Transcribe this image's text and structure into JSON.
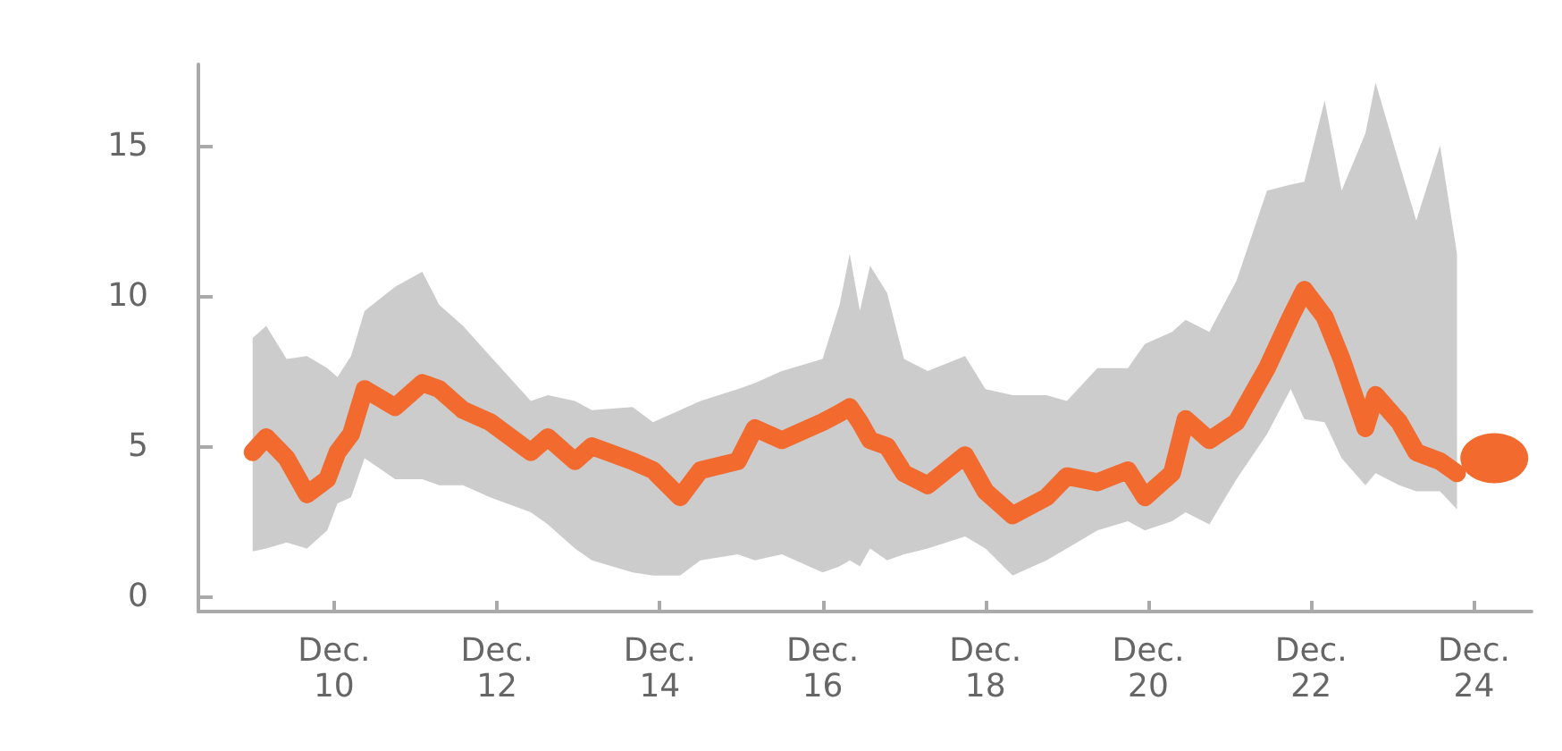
{
  "chart_data": {
    "type": "line",
    "x": [
      "--12-09T00:00",
      "--12-09T04:00",
      "--12-09T10:00",
      "--12-09T16:00",
      "--12-09T22:00",
      "--12-10T01:00",
      "--12-10T05:00",
      "--12-10T09:00",
      "--12-10T18:00",
      "--12-11T02:00",
      "--12-11T07:00",
      "--12-11T14:00",
      "--12-11T22:00",
      "--12-12T10:00",
      "--12-12T15:00",
      "--12-12T23:00",
      "--12-13T04:00",
      "--12-13T16:00",
      "--12-13T22:00",
      "--12-14T06:00",
      "--12-14T12:00",
      "--12-14T23:00",
      "--12-15T04:00",
      "--12-15T12:00",
      "--12-16T00:00",
      "--12-16T05:00",
      "--12-16T08:00",
      "--12-16T11:00",
      "--12-16T14:00",
      "--12-16T19:00",
      "--12-17T00:00",
      "--12-17T07:00",
      "--12-17T18:00",
      "--12-18T00:00",
      "--12-18T08:00",
      "--12-18T18:00",
      "--12-19T00:00",
      "--12-19T09:00",
      "--12-19T18:00",
      "--12-19T23:00",
      "--12-20T07:00",
      "--12-20T11:00",
      "--12-20T18:00",
      "--12-21T02:00",
      "--12-21T11:00",
      "--12-21T18:00",
      "--12-21T22:00",
      "--12-22T04:00",
      "--12-22T09:00",
      "--12-22T16:00",
      "--12-22T19:00",
      "--12-23T02:00",
      "--12-23T07:00",
      "--12-23T14:00",
      "--12-23T19:00"
    ],
    "series": [
      {
        "color": "#f26a2e",
        "values": [
          4.8,
          5.3,
          4.6,
          3.4,
          3.9,
          4.8,
          5.4,
          6.9,
          6.3,
          7.1,
          6.9,
          6.2,
          5.8,
          4.8,
          5.3,
          4.5,
          5.0,
          4.5,
          4.2,
          3.3,
          4.2,
          4.5,
          5.6,
          5.2,
          5.8,
          6.1,
          6.3,
          5.8,
          5.2,
          5.0,
          4.1,
          3.7,
          4.7,
          3.5,
          2.7,
          3.3,
          4.0,
          3.8,
          4.2,
          3.3,
          4.1,
          5.9,
          5.2,
          5.8,
          7.6,
          9.3,
          10.2,
          9.3,
          7.9,
          5.6,
          6.7,
          5.8,
          4.8,
          4.5,
          4.1
        ],
        "lower": [
          1.5,
          1.6,
          1.8,
          1.6,
          2.2,
          3.1,
          3.3,
          4.6,
          3.9,
          3.9,
          3.7,
          3.7,
          3.3,
          2.8,
          2.4,
          1.6,
          1.2,
          0.8,
          0.7,
          0.7,
          1.2,
          1.4,
          1.2,
          1.4,
          0.8,
          1.0,
          1.2,
          1.0,
          1.6,
          1.2,
          1.4,
          1.6,
          2.0,
          1.6,
          0.7,
          1.2,
          1.6,
          2.2,
          2.5,
          2.2,
          2.5,
          2.8,
          2.4,
          3.9,
          5.4,
          6.9,
          5.9,
          5.8,
          4.6,
          3.7,
          4.1,
          3.7,
          3.5,
          3.5,
          2.9
        ],
        "upper": [
          8.6,
          9.0,
          7.9,
          8.0,
          7.6,
          7.3,
          8.0,
          9.5,
          10.3,
          10.8,
          9.7,
          9.0,
          8.0,
          6.5,
          6.7,
          6.5,
          6.2,
          6.3,
          5.8,
          6.2,
          6.5,
          6.9,
          7.1,
          7.5,
          7.9,
          9.7,
          11.4,
          9.5,
          11.0,
          10.1,
          7.9,
          7.5,
          8.0,
          6.9,
          6.7,
          6.7,
          6.5,
          7.6,
          7.6,
          8.4,
          8.8,
          9.2,
          8.8,
          10.5,
          13.5,
          13.7,
          13.8,
          16.5,
          13.5,
          15.4,
          17.1,
          14.4,
          12.5,
          15.0,
          11.4
        ]
      },
      {
        "type": "scatter",
        "color": "#f26a2e",
        "marker": "circle",
        "x": [
          "--12-24T06:00"
        ],
        "values": [
          4.6
        ]
      }
    ],
    "xlim": [
      "--12-08T08:00",
      "--12-24T17:00"
    ],
    "xticks": [
      {
        "value": "--12-10",
        "label": "Dec.\n10"
      },
      {
        "value": "--12-12",
        "label": "Dec.\n12"
      },
      {
        "value": "--12-14",
        "label": "Dec.\n14"
      },
      {
        "value": "--12-16",
        "label": "Dec.\n16"
      },
      {
        "value": "--12-18",
        "label": "Dec.\n18"
      },
      {
        "value": "--12-20",
        "label": "Dec.\n20"
      },
      {
        "value": "--12-22",
        "label": "Dec.\n22"
      },
      {
        "value": "--12-24",
        "label": "Dec.\n24"
      }
    ],
    "ylim": [
      -0.5,
      17.7
    ],
    "yticks": [
      0,
      5,
      10,
      15
    ],
    "grid": false,
    "line_style": "solid"
  }
}
